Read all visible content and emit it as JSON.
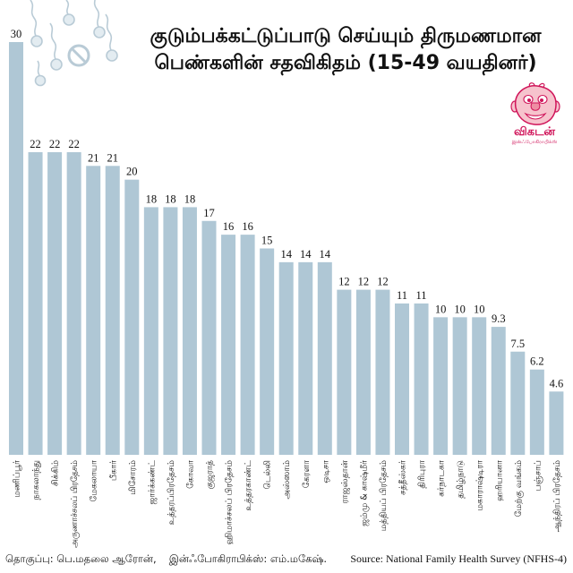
{
  "chart_data": {
    "type": "bar",
    "title": [
      "குடும்பக்கட்டுப்பாடு செய்யும் திருமணமான",
      "பெண்களின் சதவிகிதம் (15-49 வயதினர்)"
    ],
    "categories": [
      "மணிப்பூர்",
      "நாகலாந்து",
      "சிக்கிம்",
      "அருணாச்சலப் பிரதேசம்",
      "மேகலாயா",
      "பீகார்",
      "மிசோரம்",
      "ஜார்க்கண்ட்",
      "உத்தரப்பிரதேசம்",
      "கோவா",
      "குஜராத்",
      "ஹிமாச்சலப் பிரதேசம்",
      "உத்தரகாண்ட்",
      "டெல்லி",
      "அஸ்ஸாம்",
      "கேரளா",
      "ஒடிசா",
      "ராஜஸ்தான்",
      "ஜம்மு & காஷ்மீர்",
      "மத்தியப் பிரதேசம்",
      "சத்தீஸ்கர்",
      "திரிபுரா",
      "கர்நாடகா",
      "தமிழ்நாடு",
      "மகாராஷ்டிரா",
      "ஹரியானா",
      "மேற்கு வங்கம்",
      "பஞ்சாப்",
      "ஆந்திரப் பிரதேசம்"
    ],
    "values": [
      30,
      22,
      22,
      22,
      21,
      21,
      20,
      18,
      18,
      18,
      17,
      16,
      16,
      15,
      14,
      14,
      14,
      12,
      12,
      12,
      11,
      11,
      10,
      10,
      10,
      9.3,
      7.5,
      6.2,
      4.6
    ],
    "ylim": [
      0,
      30
    ],
    "grid": false,
    "legend": "none",
    "bar_color": "#afc7d5"
  },
  "logo": {
    "name": "விகடன்",
    "subtitle": "இன்ஃபோகிராபிக்ஸ்",
    "color": "#d0155a"
  },
  "footer": {
    "compiled_by": "தொகுப்பு: பெ.மதலை ஆரோன்,",
    "graphics_by": "இன்ஃபோகிராபிக்ஸ்: எம்.மகேஷ்.",
    "source": "Source: National Family Health Survey (NFHS-4)"
  },
  "decor": {
    "icons": [
      "sperm-icon",
      "no-sign-icon"
    ],
    "icon_color": "#b9cbd6"
  }
}
